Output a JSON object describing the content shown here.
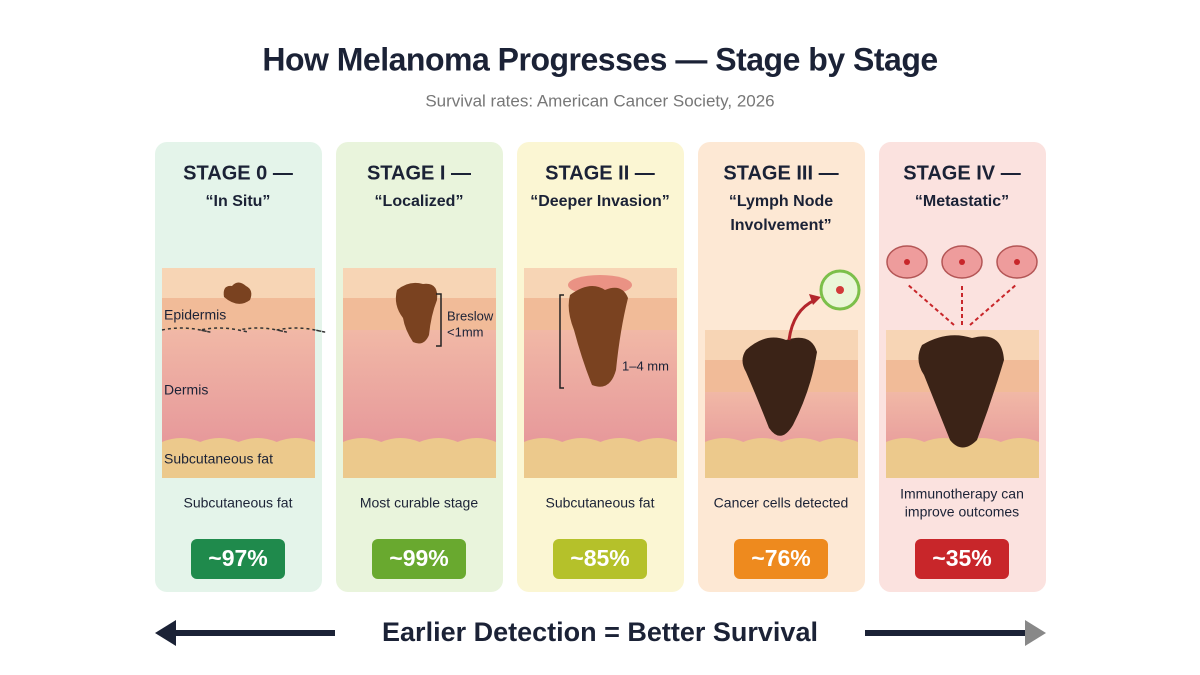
{
  "header": {
    "title": "How Melanoma Progresses — Stage by Stage",
    "subtitle": "Survival rates: American Cancer Society, 2026"
  },
  "stages": [
    {
      "heading": "STAGE 0 —",
      "name_lines": [
        "“In Situ”"
      ],
      "layer_labels": [
        "Epidermis",
        "Dermis",
        "Subcutaneous fat"
      ],
      "caption_lines": [
        "Subcutaneous fat"
      ],
      "survival": "~97%"
    },
    {
      "heading": "STAGE I —",
      "name_lines": [
        "“Localized”"
      ],
      "depth_label_lines": [
        "Breslow",
        "<1mm"
      ],
      "caption_lines": [
        "Most curable stage"
      ],
      "survival": "~99%"
    },
    {
      "heading": "STAGE II —",
      "name_lines": [
        "“Deeper Invasion”"
      ],
      "depth_label_lines": [
        "1–4 mm"
      ],
      "caption_lines": [
        "Subcutaneous fat"
      ],
      "survival": "~85%"
    },
    {
      "heading": "STAGE III —",
      "name_lines": [
        "“Lymph Node",
        "Involvement”"
      ],
      "caption_lines": [
        "Cancer cells detected"
      ],
      "survival": "~76%"
    },
    {
      "heading": "STAGE IV —",
      "name_lines": [
        "“Metastatic”"
      ],
      "caption_lines": [
        "Immunotherapy can",
        "improve outcomes"
      ],
      "survival": "~35%"
    }
  ],
  "footer": "Earlier Detection = Better Survival"
}
